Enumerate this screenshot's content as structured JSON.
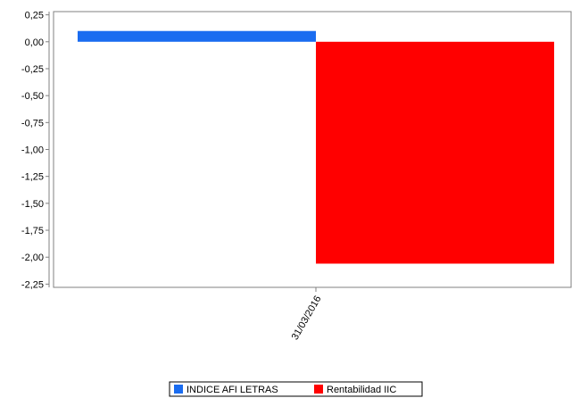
{
  "chart_data": {
    "type": "bar",
    "categories": [
      "31/03/2016"
    ],
    "series": [
      {
        "name": "INDICE AFI LETRAS",
        "color": "#1a6cf0",
        "values": [
          0.1
        ]
      },
      {
        "name": "Rentabilidad IIC",
        "color": "#ff0000",
        "values": [
          -2.06
        ]
      }
    ],
    "ylim": [
      -2.28,
      0.28
    ],
    "yticks": [
      "0,25",
      "0,00",
      "-0,25",
      "-0,50",
      "-0,75",
      "-1,00",
      "-1,25",
      "-1,50",
      "-1,75",
      "-2,00",
      "-2,25"
    ],
    "ytick_values": [
      0.25,
      0,
      -0.25,
      -0.5,
      -0.75,
      -1.0,
      -1.25,
      -1.5,
      -1.75,
      -2.0,
      -2.25
    ],
    "xlabel": "",
    "ylabel": "",
    "title": "",
    "grid": false,
    "legend_position": "bottom-center"
  }
}
